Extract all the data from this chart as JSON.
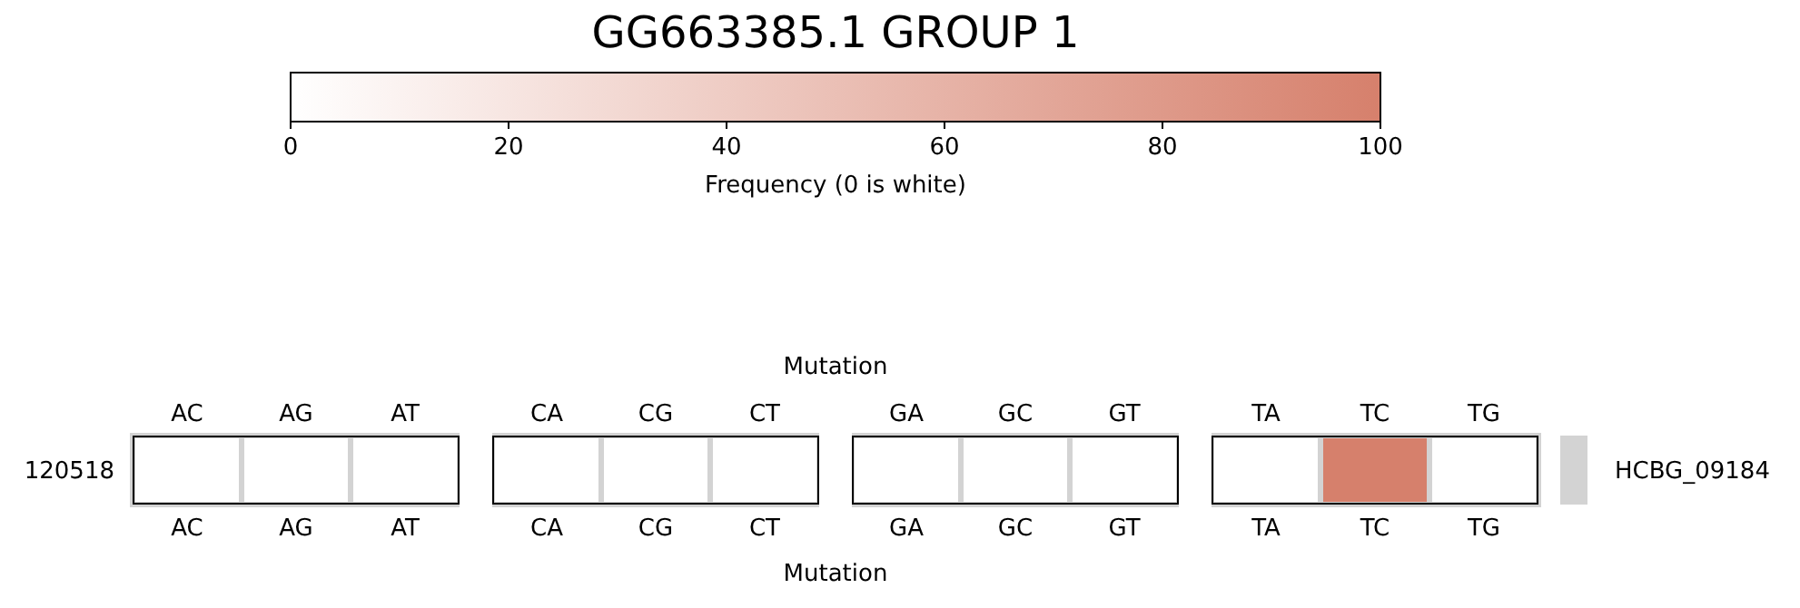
{
  "chart_data": {
    "type": "heatmap",
    "title": "GG663385.1 GROUP 1",
    "clabel": "Frequency (0 is white)",
    "clim": [
      0,
      100
    ],
    "cticks": [
      0,
      20,
      40,
      60,
      80,
      100
    ],
    "xlabel": "Mutation",
    "x2label": "Mutation",
    "categories": [
      "AC",
      "AG",
      "AT",
      null,
      "CA",
      "CG",
      "CT",
      null,
      "GA",
      "GC",
      "GT",
      null,
      "TA",
      "TC",
      "TG"
    ],
    "y_categories": [
      "120518"
    ],
    "y2_categories": [
      "HCBG_09184"
    ],
    "cells": [
      [
        0,
        0,
        0,
        null,
        0,
        0,
        0,
        null,
        0,
        0,
        0,
        null,
        0,
        100,
        0
      ]
    ]
  }
}
